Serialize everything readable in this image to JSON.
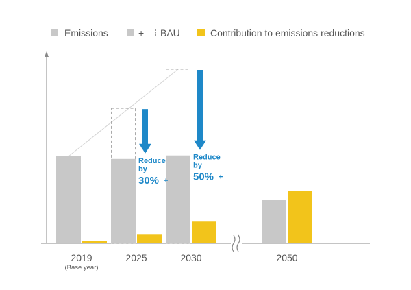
{
  "chart_data": {
    "type": "bar",
    "categories": [
      "2019",
      "2025",
      "2030",
      "2050"
    ],
    "category_sublabels": [
      "(Base year)",
      "",
      "",
      ""
    ],
    "series": [
      {
        "name": "Emissions",
        "values": [
          100,
          97,
          101,
          50
        ],
        "color": "#c8c8c8"
      },
      {
        "name": "BAU",
        "values": [
          null,
          155,
          200,
          null
        ],
        "color": "#c8c8c8",
        "style": "dashed-outline"
      },
      {
        "name": "Contribution to emissions reductions",
        "values": [
          3,
          10,
          25,
          60
        ],
        "color": "#f2c41b"
      }
    ],
    "legend": {
      "placement": "top",
      "items": [
        {
          "label": "Emissions",
          "marker": "gray-square"
        },
        {
          "label": "+",
          "marker": "gray-square"
        },
        {
          "label": "BAU",
          "marker": "dashed-square"
        },
        {
          "label": "Contribution to emissions reductions",
          "marker": "yellow-square"
        }
      ]
    },
    "annotations": [
      {
        "category": "2025",
        "lines": [
          "Reduce",
          "by"
        ],
        "emphasis": "30%",
        "suffix": "+"
      },
      {
        "category": "2030",
        "lines": [
          "Reduce",
          "by"
        ],
        "emphasis": "50%",
        "suffix": "+"
      }
    ],
    "axis_break": {
      "between": [
        "2030",
        "2050"
      ],
      "symbol": "≈"
    },
    "ylim": [
      0,
      210
    ],
    "grid": false,
    "colors": {
      "emissions": "#c8c8c8",
      "reduction": "#f2c41b",
      "arrow": "#1e88c8",
      "axis": "#888888",
      "trend": "#cccccc"
    }
  }
}
